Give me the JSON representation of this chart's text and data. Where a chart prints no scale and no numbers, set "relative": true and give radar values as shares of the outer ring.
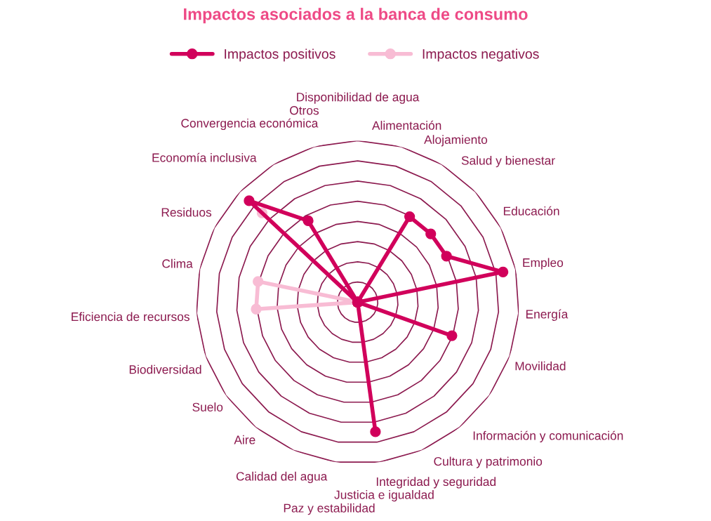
{
  "chart_data": {
    "type": "radar",
    "title": "Impactos asociados a la banca de consumo",
    "relative": true,
    "grid": true,
    "legend": "top",
    "marker": "circle",
    "line_style": "solid",
    "categories": [
      "Disponibilidad de agua",
      "Alimentación",
      "Alojamiento",
      "Salud y bienestar",
      "Educación",
      "Empleo",
      "Energía",
      "Movilidad",
      "Información y comunicación",
      "Cultura y patrimonio",
      "Integridad y seguridad",
      "Justicia e igualdad",
      "Paz y estabilidad",
      "Calidad del agua",
      "Aire",
      "Suelo",
      "Biodiversidad",
      "Eficiencia de recursos",
      "Clima",
      "Residuos",
      "Economía inclusiva",
      "Convergencia económica",
      "Otros"
    ],
    "series": [
      {
        "name": "Impactos positivos",
        "color": "#d1005b",
        "values": [
          0,
          0,
          0.62,
          0.62,
          0.62,
          0.92,
          0,
          0.62,
          0,
          0,
          0,
          0.81,
          0,
          0,
          0,
          0,
          0,
          0,
          0,
          0,
          0.92,
          0.59,
          0
        ]
      },
      {
        "name": "Impactos negativos",
        "color": "#f8bcd4",
        "values": [
          0,
          0,
          0,
          0,
          0,
          0,
          0,
          0,
          0,
          0,
          0,
          0,
          0,
          0,
          0,
          0,
          0,
          0.63,
          0.63,
          0,
          0.81,
          0,
          0
        ]
      }
    ]
  }
}
